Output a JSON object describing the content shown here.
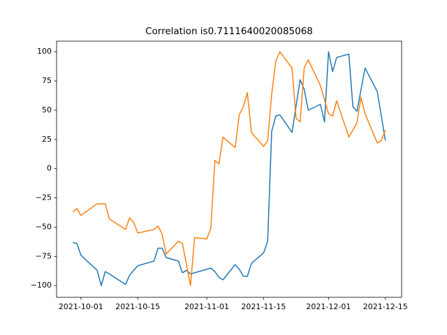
{
  "chart_data": {
    "type": "line",
    "title": "Correlation is0.7111640020085068",
    "xlim": [
      "2021-09-25",
      "2021-12-19"
    ],
    "xticks": [
      "2021-10-01",
      "2021-10-15",
      "2021-11-01",
      "2021-11-15",
      "2021-12-01",
      "2021-12-15"
    ],
    "ylim": [
      -110,
      109
    ],
    "yticks": [
      {
        "value": -100,
        "label": "−100"
      },
      {
        "value": -75,
        "label": "−75"
      },
      {
        "value": -50,
        "label": "−50"
      },
      {
        "value": -25,
        "label": "−25"
      },
      0,
      25,
      50,
      75,
      100
    ],
    "series": [
      {
        "color": "#1f77b4",
        "x": [
          "2021-09-29",
          "2021-09-30",
          "2021-10-01",
          "2021-10-05",
          "2021-10-06",
          "2021-10-07",
          "2021-10-08",
          "2021-10-12",
          "2021-10-13",
          "2021-10-15",
          "2021-10-19",
          "2021-10-20",
          "2021-10-21",
          "2021-10-22",
          "2021-10-25",
          "2021-10-26",
          "2021-10-27",
          "2021-10-28",
          "2021-11-02",
          "2021-11-03",
          "2021-11-04",
          "2021-11-05",
          "2021-11-08",
          "2021-11-09",
          "2021-11-10",
          "2021-11-11",
          "2021-11-12",
          "2021-11-15",
          "2021-11-16",
          "2021-11-17",
          "2021-11-18",
          "2021-11-19",
          "2021-11-22",
          "2021-11-24",
          "2021-11-25",
          "2021-11-26",
          "2021-11-29",
          "2021-11-30",
          "2021-12-01",
          "2021-12-02",
          "2021-12-03",
          "2021-12-06",
          "2021-12-07",
          "2021-12-08",
          "2021-12-10",
          "2021-12-13",
          "2021-12-15"
        ],
        "values": [
          -63,
          -64,
          -74,
          -87,
          -100,
          -88,
          -90,
          -99,
          -91,
          -83,
          -79,
          -68,
          -68,
          -76,
          -79,
          -89,
          -87,
          -90,
          -85,
          -88,
          -93,
          -95,
          -82,
          -86,
          -92,
          -92,
          -81,
          -72,
          -62,
          32,
          45,
          46,
          31,
          76,
          68,
          50,
          55,
          40,
          100,
          83,
          95,
          98,
          53,
          49,
          86,
          66,
          24
        ]
      },
      {
        "color": "#ff7f0e",
        "x": [
          "2021-09-29",
          "2021-09-30",
          "2021-10-01",
          "2021-10-05",
          "2021-10-07",
          "2021-10-08",
          "2021-10-12",
          "2021-10-13",
          "2021-10-14",
          "2021-10-15",
          "2021-10-19",
          "2021-10-20",
          "2021-10-21",
          "2021-10-22",
          "2021-10-25",
          "2021-10-26",
          "2021-10-28",
          "2021-10-29",
          "2021-11-01",
          "2021-11-02",
          "2021-11-03",
          "2021-11-04",
          "2021-11-05",
          "2021-11-08",
          "2021-11-09",
          "2021-11-10",
          "2021-11-11",
          "2021-11-12",
          "2021-11-15",
          "2021-11-16",
          "2021-11-17",
          "2021-11-18",
          "2021-11-19",
          "2021-11-22",
          "2021-11-23",
          "2021-11-24",
          "2021-11-25",
          "2021-11-26",
          "2021-11-29",
          "2021-12-01",
          "2021-12-02",
          "2021-12-03",
          "2021-12-06",
          "2021-12-08",
          "2021-12-09",
          "2021-12-10",
          "2021-12-13",
          "2021-12-14",
          "2021-12-15"
        ],
        "values": [
          -37,
          -34,
          -40,
          -30,
          -30,
          -43,
          -52,
          -42,
          -46,
          -55,
          -52,
          -49,
          -56,
          -73,
          -62,
          -64,
          -100,
          -59,
          -60,
          -51,
          7,
          4,
          27,
          18,
          46,
          53,
          65,
          31,
          19,
          24,
          64,
          92,
          100,
          86,
          43,
          40,
          86,
          93,
          71,
          47,
          45,
          58,
          27,
          39,
          61,
          47,
          22,
          24,
          33
        ]
      }
    ]
  }
}
